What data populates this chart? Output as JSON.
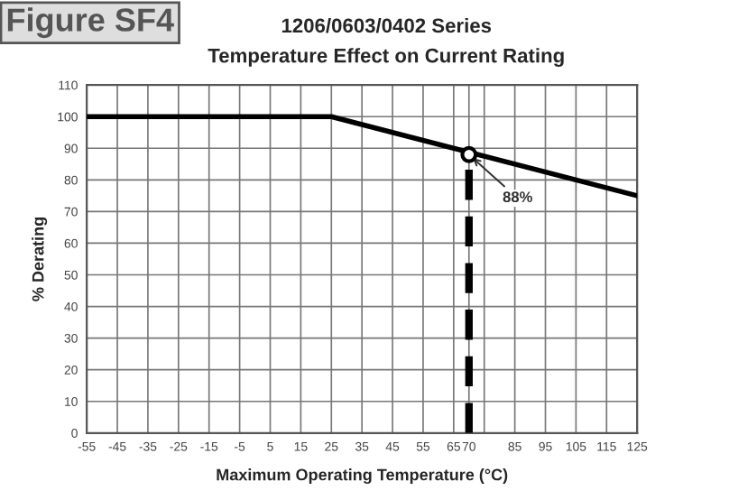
{
  "chart_data": {
    "type": "line",
    "title": "1206/0603/0402 Series",
    "subtitle": "Temperature Effect on Current Rating",
    "xlabel": "Maximum Operating Temperature (°C)",
    "ylabel": "% Derating",
    "series": [
      {
        "color": "#000000",
        "x": [
          -55,
          25,
          125
        ],
        "values": [
          100,
          100,
          75
        ],
        "line_style": "solid"
      },
      {
        "color": "#000000",
        "x": [
          70,
          70
        ],
        "values": [
          0,
          88
        ],
        "line_style": "dashed"
      },
      {
        "type": "scatter",
        "color": "#000000",
        "x": [
          70
        ],
        "values": [
          88
        ],
        "marker": "circle"
      }
    ],
    "annotations": [
      "Figure SF4",
      {
        "text": "88%",
        "x": 70,
        "y": 88
      }
    ],
    "xlim": [
      -55,
      125
    ],
    "xticks": [
      -55,
      -45,
      -35,
      -25,
      -15,
      -5,
      5,
      15,
      25,
      35,
      45,
      55,
      65,
      70,
      {
        "value": 75,
        "label": null
      },
      85,
      95,
      105,
      115,
      125
    ],
    "ylim": [
      0,
      110
    ],
    "yticks": [
      0,
      10,
      20,
      30,
      40,
      50,
      60,
      70,
      80,
      90,
      100,
      110
    ],
    "grid": true,
    "legend": false
  }
}
